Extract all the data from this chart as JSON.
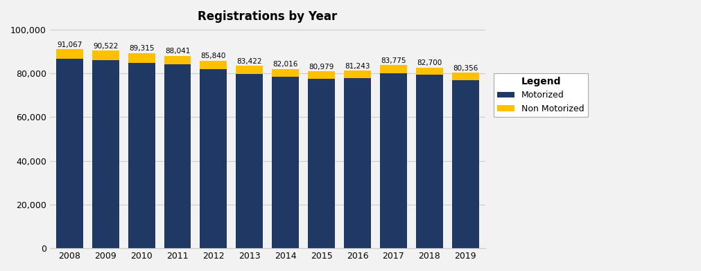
{
  "years": [
    2008,
    2009,
    2010,
    2011,
    2012,
    2013,
    2014,
    2015,
    2016,
    2017,
    2018,
    2019
  ],
  "totals": [
    91067,
    90522,
    89315,
    88041,
    85840,
    83422,
    82016,
    80979,
    81243,
    83775,
    82700,
    80356
  ],
  "motorized": [
    86700,
    86200,
    84900,
    84000,
    82000,
    79600,
    78600,
    77500,
    77900,
    80000,
    79500,
    77000
  ],
  "motorized_color": "#1F3864",
  "non_motorized_color": "#FFC000",
  "background_color": "#F2F2F2",
  "plot_bg_color": "#F2F2F2",
  "title": "Registrations by Year",
  "title_fontsize": 12,
  "ylim": [
    0,
    100000
  ],
  "yticks": [
    0,
    20000,
    40000,
    60000,
    80000,
    100000
  ],
  "legend_title": "Legend",
  "legend_labels": [
    "Motorized",
    "Non Motorized"
  ],
  "bar_width": 0.75
}
